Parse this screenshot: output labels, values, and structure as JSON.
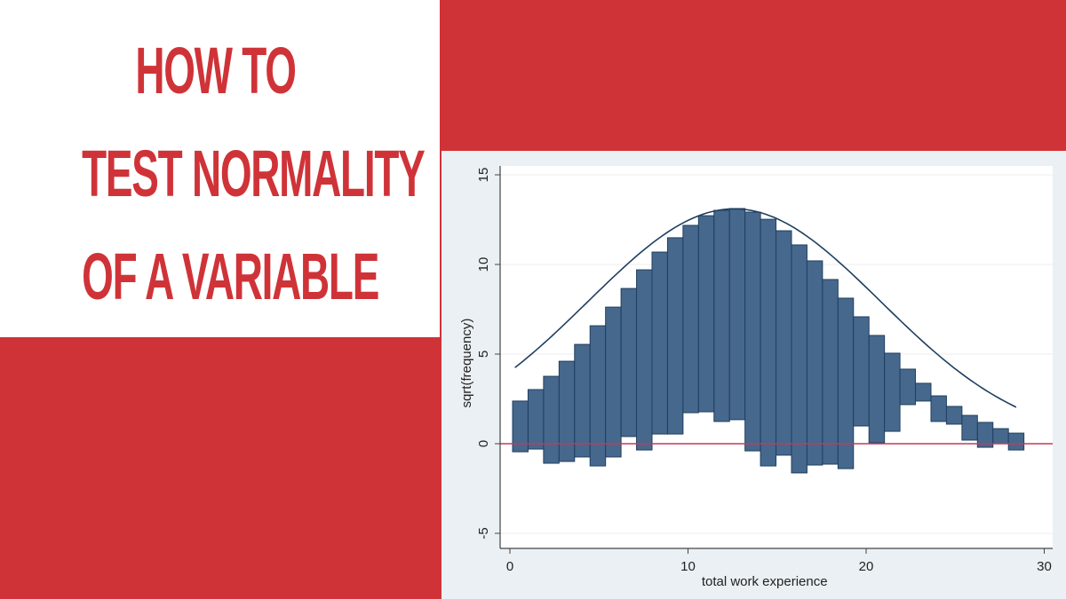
{
  "title": {
    "lines": [
      "HOW TO",
      "TEST NORMALITY",
      "OF A VARIABLE"
    ]
  },
  "colors": {
    "accent_red": "#cf3338",
    "bar_fill": "#46688c",
    "bar_stroke": "#1f3f60",
    "curve": "#1f3f60",
    "zero_line": "#c8385a",
    "plot_bg": "#ffffff",
    "outer_bg": "#eaf0f3"
  },
  "chart_data": {
    "type": "bar",
    "subtype": "hanging rootogram",
    "title": "",
    "xlabel": "total work experience",
    "ylabel": "sqrt(frequency)",
    "xlim": [
      -0.3,
      30.4
    ],
    "ylim": [
      -5.6,
      15.4
    ],
    "xticks": [
      0,
      10,
      20,
      30
    ],
    "yticks": [
      -5,
      0,
      5,
      10,
      15
    ],
    "grid": "horizontal",
    "bar_width": 0.87,
    "bars": [
      {
        "x": 0.15,
        "top": 2.38,
        "bottom": -0.45
      },
      {
        "x": 1.02,
        "top": 3.02,
        "bottom": -0.3
      },
      {
        "x": 1.89,
        "top": 3.76,
        "bottom": -1.09
      },
      {
        "x": 2.76,
        "top": 4.6,
        "bottom": -0.99
      },
      {
        "x": 3.63,
        "top": 5.54,
        "bottom": -0.74
      },
      {
        "x": 4.5,
        "top": 6.58,
        "bottom": -1.24
      },
      {
        "x": 5.37,
        "top": 7.62,
        "bottom": -0.74
      },
      {
        "x": 6.24,
        "top": 8.66,
        "bottom": 0.4
      },
      {
        "x": 7.11,
        "top": 9.7,
        "bottom": -0.35
      },
      {
        "x": 7.98,
        "top": 10.69,
        "bottom": 0.54
      },
      {
        "x": 8.85,
        "top": 11.49,
        "bottom": 0.54
      },
      {
        "x": 9.72,
        "top": 12.18,
        "bottom": 1.73
      },
      {
        "x": 10.59,
        "top": 12.72,
        "bottom": 1.78
      },
      {
        "x": 11.46,
        "top": 13.02,
        "bottom": 1.24
      },
      {
        "x": 12.33,
        "top": 13.12,
        "bottom": 1.34
      },
      {
        "x": 13.2,
        "top": 12.92,
        "bottom": -0.4
      },
      {
        "x": 14.07,
        "top": 12.52,
        "bottom": -1.24
      },
      {
        "x": 14.94,
        "top": 11.88,
        "bottom": -0.64
      },
      {
        "x": 15.81,
        "top": 11.09,
        "bottom": -1.63
      },
      {
        "x": 16.68,
        "top": 10.2,
        "bottom": -1.19
      },
      {
        "x": 17.55,
        "top": 9.16,
        "bottom": -1.14
      },
      {
        "x": 18.42,
        "top": 8.12,
        "bottom": -1.39
      },
      {
        "x": 19.29,
        "top": 7.08,
        "bottom": 0.99
      },
      {
        "x": 20.16,
        "top": 6.04,
        "bottom": 0.05
      },
      {
        "x": 21.03,
        "top": 5.05,
        "bottom": 0.69
      },
      {
        "x": 21.9,
        "top": 4.16,
        "bottom": 2.18
      },
      {
        "x": 22.77,
        "top": 3.37,
        "bottom": 2.38
      },
      {
        "x": 23.64,
        "top": 2.67,
        "bottom": 1.24
      },
      {
        "x": 24.51,
        "top": 2.08,
        "bottom": 1.09
      },
      {
        "x": 25.38,
        "top": 1.58,
        "bottom": 0.2
      },
      {
        "x": 26.25,
        "top": 1.19,
        "bottom": -0.2
      },
      {
        "x": 27.12,
        "top": 0.84,
        "bottom": 0.0
      },
      {
        "x": 27.99,
        "top": 0.59,
        "bottom": -0.35
      }
    ],
    "curve": {
      "type": "normal",
      "mean": 12.6,
      "peak_sqrt": 13.1,
      "sd": 5.8
    }
  }
}
